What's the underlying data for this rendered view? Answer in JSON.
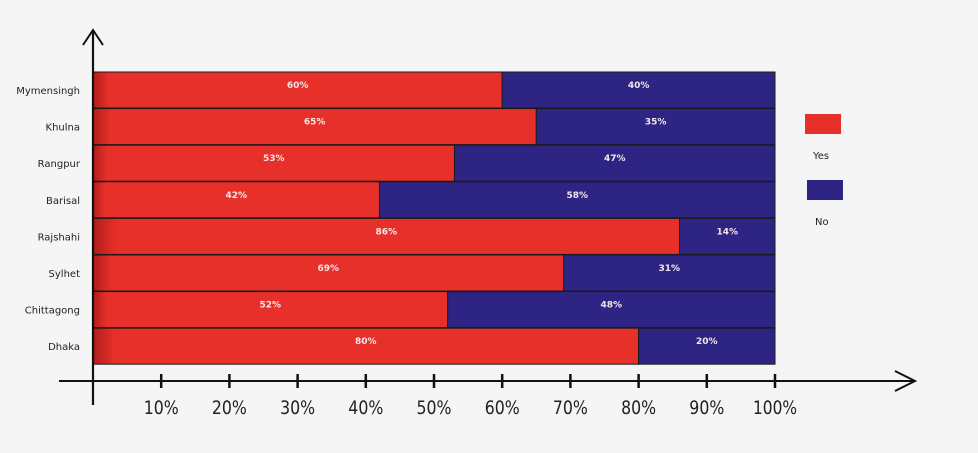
{
  "chart_data": {
    "type": "bar",
    "orientation": "horizontal",
    "stacked": true,
    "title": "",
    "xlabel": "",
    "ylabel": "",
    "xlim": [
      0,
      100
    ],
    "grid": false,
    "categories": [
      "Mymensingh",
      "Khulna",
      "Rangpur",
      "Barisal",
      "Rajshahi",
      "Sylhet",
      "Chittagong",
      "Dhaka"
    ],
    "series": [
      {
        "name": "Yes",
        "color": "#e8302a",
        "values": [
          60,
          65,
          53,
          42,
          86,
          69,
          52,
          80
        ],
        "labels": [
          "60%",
          "65%",
          "53%",
          "42%",
          "86%",
          "69%",
          "52%",
          "80%"
        ]
      },
      {
        "name": "No",
        "color": "#2e2483",
        "values": [
          40,
          35,
          47,
          58,
          14,
          31,
          48,
          20
        ],
        "labels": [
          "40%",
          "35%",
          "47%",
          "58%",
          "14%",
          "31%",
          "48%",
          "20%"
        ]
      }
    ],
    "x_ticks": [
      10,
      20,
      30,
      40,
      50,
      60,
      70,
      80,
      90,
      100
    ],
    "x_tick_labels": [
      "10%",
      "20%",
      "30%",
      "40%",
      "50%",
      "60%",
      "70%",
      "80%",
      "90%",
      "100%"
    ],
    "legend": {
      "placement": "right",
      "entries": [
        {
          "label": "Yes",
          "color": "#e8302a"
        },
        {
          "label": "No",
          "color": "#2e2483"
        }
      ]
    }
  }
}
